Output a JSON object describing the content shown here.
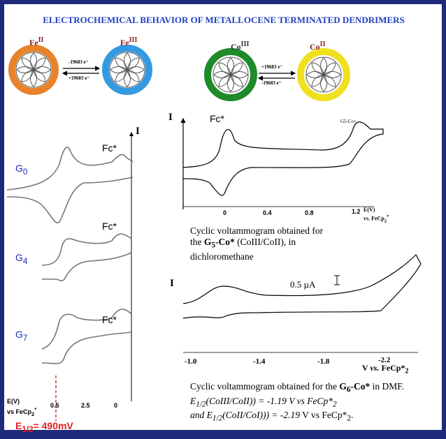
{
  "title": "ELECTROCHEMICAL  BEHAVIOR OF METALLOCENE TERMINATED DENDRIMERS",
  "scheme": {
    "fe_left": {
      "base": "Fe",
      "sup": "II"
    },
    "fe_right": {
      "base": "Fe",
      "sup": "III"
    },
    "fe_forward": "-19683 e⁻",
    "fe_back": "+19683 e⁻",
    "co_left": {
      "base": "Co",
      "sup": "III"
    },
    "co_right": {
      "base": "Co",
      "sup": "II"
    },
    "co_forward": "+19683 e⁻",
    "co_back": "-19683 e⁻"
  },
  "left_panel": {
    "axis_i": "I",
    "traces": [
      {
        "label": {
          "base": "G",
          "sub": "0"
        },
        "species": "Fc*"
      },
      {
        "label": {
          "base": "G",
          "sub": "4"
        },
        "species": "Fc*"
      },
      {
        "label": {
          "base": "G",
          "sub": "7"
        },
        "species": "Fc*"
      }
    ],
    "x_axis": {
      "line1": "E(V)",
      "line2": "vs FeCp",
      "sub": "2",
      "sup": "*"
    },
    "ticks": [
      "0.5",
      "2.5",
      "0"
    ],
    "e_half": {
      "base": "E",
      "sub": "1/2",
      "rest": "= 490mV"
    }
  },
  "top_graph": {
    "axis_i": "I",
    "species": "Fc*",
    "peak_label": "G5-Co+",
    "ticks": [
      "0",
      "0.4",
      "0.8",
      "1.2"
    ],
    "x_axis": {
      "line1": "E(V)",
      "line2": "vs. FeCp",
      "sub": "2",
      "sup": "*"
    }
  },
  "top_caption": {
    "pre": "Cyclic voltammogram obtained for the ",
    "bold_base": "G",
    "bold_sub": "5",
    "bold_rest": "-Co*",
    "post": " (CoIII/CoII), in dichloromethane"
  },
  "bottom_graph": {
    "axis_i": "I",
    "scale": "0.5 µA",
    "ticks": [
      "-1.0",
      "-1.4",
      "-1.8",
      "-2.2"
    ],
    "x_axis": {
      "base": "V ",
      "italic": "vs.",
      "rest": " FeCp*",
      "sub": "2"
    }
  },
  "bottom_caption": {
    "pre": "Cyclic voltammogram obtained for the ",
    "bold_base": "G",
    "bold_sub": "6",
    "bold_rest": "-Co*",
    "post": " in DMF.",
    "line2": {
      "base": "E",
      "sub": "1/2",
      "rest": "(CoIII/CoII)) = -1.19 V vs FeCp*",
      "end_sub": "2"
    },
    "line3": {
      "base": "and E",
      "sub": "1/2",
      "rest": "(CoII/CoI))) = -2.19",
      "plain": " V vs FeCp*",
      "end_sub": "2",
      "end": "."
    }
  }
}
